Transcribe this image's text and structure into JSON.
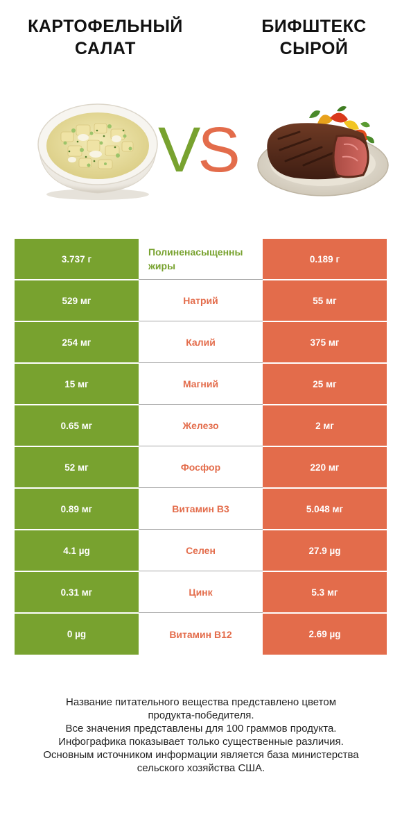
{
  "header": {
    "left_title": "КАРТОФЕЛЬНЫЙ\nСАЛАТ",
    "right_title": "БИФШТЕКС\nСЫРОЙ",
    "vs_v": "V",
    "vs_s": "S"
  },
  "colors": {
    "left_accent": "#78a22f",
    "right_accent": "#e36c4b"
  },
  "images": {
    "left": "potato-salad-bowl-image",
    "right": "steak-plate-image"
  },
  "rows": [
    {
      "left": "3.737 г",
      "nutrient_line1": "Полиненасыщенны",
      "nutrient_line2": "жиры",
      "right": "0.189 г",
      "winner": "left"
    },
    {
      "left": "529 мг",
      "nutrient": "Натрий",
      "right": "55 мг",
      "winner": "right"
    },
    {
      "left": "254 мг",
      "nutrient": "Калий",
      "right": "375 мг",
      "winner": "right"
    },
    {
      "left": "15 мг",
      "nutrient": "Магний",
      "right": "25 мг",
      "winner": "right"
    },
    {
      "left": "0.65 мг",
      "nutrient": "Железо",
      "right": "2 мг",
      "winner": "right"
    },
    {
      "left": "52 мг",
      "nutrient": "Фосфор",
      "right": "220 мг",
      "winner": "right"
    },
    {
      "left": "0.89 мг",
      "nutrient": "Витамин B3",
      "right": "5.048 мг",
      "winner": "right"
    },
    {
      "left": "4.1 µg",
      "nutrient": "Селен",
      "right": "27.9 µg",
      "winner": "right"
    },
    {
      "left": "0.31 мг",
      "nutrient": "Цинк",
      "right": "5.3 мг",
      "winner": "right"
    },
    {
      "left": "0 µg",
      "nutrient": "Витамин B12",
      "right": "2.69 µg",
      "winner": "right"
    }
  ],
  "footer": {
    "line1": "Название питательного вещества представлено цветом",
    "line2": "продукта-победителя.",
    "line3": "Все значения представлены для 100 граммов продукта.",
    "line4": "Инфографика показывает только существенные различия.",
    "line5": "Основным источником информации является база министерства",
    "line6": "сельского хозяйства США."
  }
}
